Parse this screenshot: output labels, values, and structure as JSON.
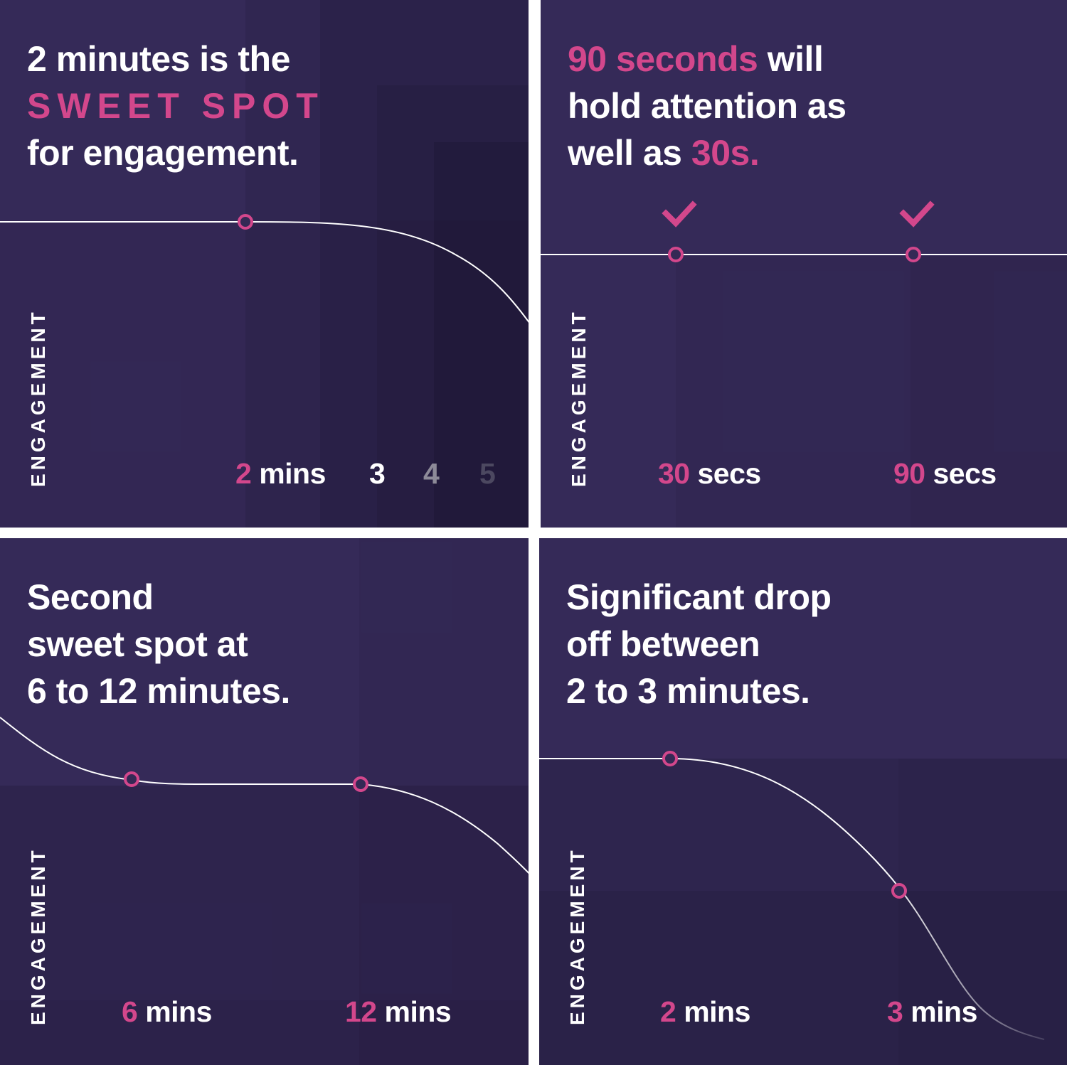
{
  "accent": "#d3478c",
  "background": "#352a58",
  "chart_data": [
    {
      "type": "line",
      "headline": {
        "l1": "2 minutes is the",
        "l2": "SWEET SPOT",
        "l3": "for engagement."
      },
      "ylabel": "ENGAGEMENT",
      "x_ticks": [
        {
          "num": "2",
          "unit": " mins"
        },
        {
          "num": "3"
        },
        {
          "num": "4"
        },
        {
          "num": "5"
        }
      ],
      "x": [
        0,
        2,
        3,
        4,
        5.4
      ],
      "y": [
        1.0,
        1.0,
        0.95,
        0.8,
        0.45
      ],
      "markers_at_x": [
        2
      ]
    },
    {
      "type": "line",
      "headline": {
        "a1": "90 seconds",
        "a2": " will",
        "b": "hold attention as",
        "c1": "well as ",
        "c2": "30s."
      },
      "ylabel": "ENGAGEMENT",
      "x_ticks": [
        {
          "num": "30",
          "unit": " secs"
        },
        {
          "num": "90",
          "unit": " secs"
        }
      ],
      "x": [
        0,
        30,
        90,
        110
      ],
      "y": [
        1.0,
        1.0,
        1.0,
        1.0
      ],
      "markers_at_x": [
        30,
        90
      ],
      "check_icons": [
        "check-icon",
        "check-icon"
      ]
    },
    {
      "type": "line",
      "headline": {
        "l1": "Second",
        "l2": "sweet spot at",
        "l3": "6 to 12 minutes."
      },
      "ylabel": "ENGAGEMENT",
      "x_ticks": [
        {
          "num": "6",
          "unit": " mins"
        },
        {
          "num": "12",
          "unit": " mins"
        }
      ],
      "x": [
        0,
        6,
        12,
        16
      ],
      "y": [
        1.0,
        0.8,
        0.8,
        0.4
      ],
      "markers_at_x": [
        6,
        12
      ]
    },
    {
      "type": "line",
      "headline": {
        "l1": "Significant drop",
        "l2": "off between",
        "l3": "2 to 3 minutes."
      },
      "ylabel": "ENGAGEMENT",
      "x_ticks": [
        {
          "num": "2",
          "unit": " mins"
        },
        {
          "num": "3",
          "unit": " mins"
        }
      ],
      "x": [
        0,
        2,
        3,
        4
      ],
      "y": [
        1.0,
        1.0,
        0.55,
        0.05
      ],
      "markers_at_x": [
        2,
        3
      ]
    }
  ]
}
